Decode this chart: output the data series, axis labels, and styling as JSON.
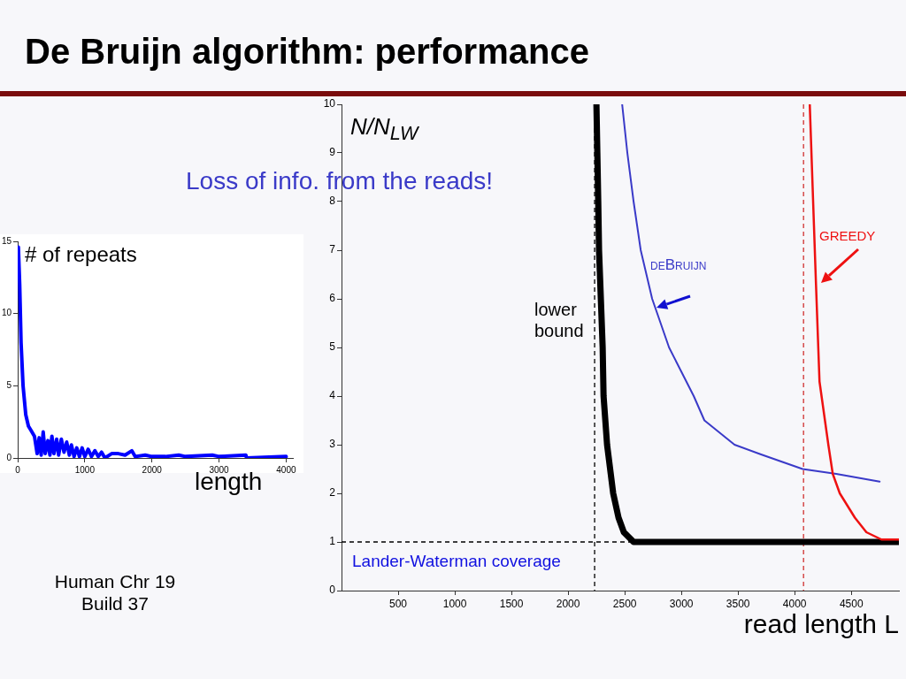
{
  "chart_data": [
    {
      "type": "line",
      "title": "De Bruijn algorithm: performance",
      "xlabel": "read length L",
      "ylabel": "N/N$_{LW}$",
      "xlim": [
        0,
        4920
      ],
      "ylim": [
        0,
        10
      ],
      "xticks": [
        500,
        1000,
        1500,
        2000,
        2500,
        3000,
        3500,
        4000,
        4500
      ],
      "yticks": [
        0,
        1,
        2,
        3,
        4,
        5,
        6,
        7,
        8,
        9,
        10
      ],
      "legend": false,
      "grid": false,
      "marker": "none",
      "line_style": "solid",
      "series": [
        {
          "name": "lower bound",
          "color": "#000000",
          "x": [
            2250,
            2258,
            2266,
            2273,
            2289,
            2305,
            2313,
            2344,
            2398,
            2445,
            2492,
            2578,
            4920
          ],
          "values": [
            10,
            9,
            8,
            7,
            6,
            5,
            4,
            3,
            2,
            1.5,
            1.2,
            1,
            1
          ]
        },
        {
          "name": "deBruijn",
          "color": "#3a3ac8",
          "x": [
            2477,
            2523,
            2578,
            2641,
            2742,
            2891,
            3109,
            3203,
            3469,
            3703,
            4070,
            4367,
            4750
          ],
          "values": [
            10,
            9,
            8,
            7,
            6,
            5,
            4,
            3.5,
            3,
            2.8,
            2.5,
            2.4,
            2.24
          ]
        },
        {
          "name": "GREEDY",
          "color": "#ee1111",
          "x": [
            4133,
            4188,
            4219,
            4297,
            4336,
            4398,
            4531,
            4633,
            4766,
            4920
          ],
          "values": [
            10,
            6.3,
            4.3,
            3,
            2.4,
            2,
            1.5,
            1.2,
            1.05,
            1.05
          ]
        }
      ],
      "ref_lines": [
        {
          "axis": "y",
          "value": 1,
          "label": "Lander-Waterman coverage",
          "color": "#000000",
          "line_style": "dashed"
        },
        {
          "axis": "x",
          "value": 2234,
          "color": "#000000",
          "line_style": "dashed"
        },
        {
          "axis": "x",
          "value": 4078,
          "color": "#d03030",
          "line_style": "dashed"
        }
      ],
      "annotations": [
        "Loss of info. from the reads!",
        "Human Chr 19 Build 37"
      ]
    },
    {
      "type": "line",
      "xlabel": "length",
      "ylabel": "# of repeats",
      "xlim": [
        0,
        4100
      ],
      "ylim": [
        0,
        15
      ],
      "xticks": [
        0,
        1000,
        2000,
        3000,
        4000
      ],
      "yticks": [
        0,
        5,
        10,
        15
      ],
      "legend": false,
      "grid": false,
      "marker": "none",
      "color": "#0000ff",
      "x": [
        10,
        30,
        50,
        80,
        120,
        160,
        200,
        250,
        290,
        320,
        350,
        380,
        410,
        450,
        480,
        510,
        540,
        580,
        610,
        650,
        690,
        730,
        770,
        800,
        840,
        880,
        920,
        960,
        1000,
        1050,
        1100,
        1150,
        1200,
        1250,
        1300,
        1400,
        1500,
        1600,
        1700,
        1750,
        1900,
        2000,
        2200,
        2400,
        2500,
        2900,
        3000,
        3400,
        3410,
        4000
      ],
      "values": [
        14.6,
        12,
        8,
        5,
        3,
        2.2,
        1.9,
        1.5,
        0.3,
        1.4,
        0.2,
        1.8,
        0.3,
        1.2,
        0.2,
        1.5,
        0.3,
        1.3,
        0.2,
        1.3,
        0.4,
        1.1,
        0.2,
        0.9,
        0.1,
        0.7,
        0.1,
        0.7,
        0.1,
        0.6,
        0.1,
        0.5,
        0.1,
        0.4,
        0,
        0.3,
        0.3,
        0.2,
        0.5,
        0.1,
        0.2,
        0.1,
        0.1,
        0.2,
        0.1,
        0.2,
        0.1,
        0.2,
        0,
        0.1
      ]
    }
  ]
}
